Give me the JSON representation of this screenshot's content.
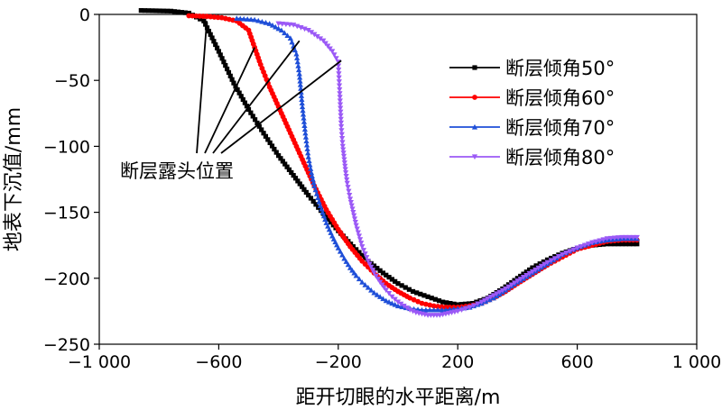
{
  "chart_data": {
    "type": "line",
    "title": "",
    "xlabel": "距开切眼的水平距离/m",
    "ylabel": "地表下沉值/mm",
    "xlim": [
      -1000,
      1000
    ],
    "ylim": [
      -250,
      0
    ],
    "xticks": [
      -1000,
      -600,
      -200,
      200,
      600,
      1000
    ],
    "xtick_labels": [
      "−1 000",
      "−600",
      "−200",
      "200",
      "600",
      "1 000"
    ],
    "yticks": [
      0,
      -50,
      -100,
      -150,
      -200,
      -250
    ],
    "ytick_labels": [
      "0",
      "−50",
      "−100",
      "−150",
      "−200",
      "−250"
    ],
    "grid": false,
    "legend_position": "top-right",
    "annotation": {
      "text": "断层露头位置",
      "points": [
        [
          -640,
          -5
        ],
        [
          -480,
          -25
        ],
        [
          -330,
          -20
        ],
        [
          -190,
          -35
        ]
      ]
    },
    "series": [
      {
        "name": "断层倾角50°",
        "color": "#000000",
        "marker": "square",
        "x": [
          -860,
          -760,
          -700,
          -650,
          -600,
          -550,
          -500,
          -450,
          -400,
          -350,
          -300,
          -250,
          -200,
          -150,
          -100,
          -50,
          0,
          50,
          100,
          150,
          200,
          250,
          300,
          350,
          400,
          450,
          500,
          550,
          600,
          650,
          700,
          750,
          800
        ],
        "y": [
          3,
          2.5,
          1,
          -5,
          -28,
          -52,
          -72,
          -90,
          -107,
          -122,
          -137,
          -151,
          -164,
          -176,
          -187,
          -196,
          -204,
          -210,
          -214,
          -218,
          -220,
          -219,
          -215,
          -208,
          -200,
          -192,
          -186,
          -181,
          -177,
          -175,
          -174,
          -174,
          -174
        ]
      },
      {
        "name": "断层倾角60°",
        "color": "#ff0000",
        "marker": "circle",
        "x": [
          -700,
          -640,
          -590,
          -540,
          -500,
          -480,
          -460,
          -430,
          -400,
          -360,
          -320,
          -280,
          -240,
          -200,
          -160,
          -120,
          -80,
          -40,
          0,
          40,
          80,
          120,
          160,
          200,
          240,
          280,
          320,
          360,
          400,
          450,
          500,
          550,
          600,
          650,
          700,
          750,
          800
        ],
        "y": [
          -1,
          -1.5,
          -2.5,
          -5,
          -12,
          -25,
          -38,
          -55,
          -70,
          -90,
          -110,
          -130,
          -148,
          -163,
          -176,
          -187,
          -196,
          -204,
          -210,
          -215,
          -219,
          -221,
          -222,
          -222,
          -221,
          -219,
          -215,
          -210,
          -204,
          -197,
          -190,
          -184,
          -178,
          -175,
          -172,
          -171,
          -171
        ]
      },
      {
        "name": "断层倾角70°",
        "color": "#1f4fd8",
        "marker": "triangle-up",
        "x": [
          -540,
          -480,
          -430,
          -390,
          -360,
          -340,
          -330,
          -320,
          -310,
          -300,
          -290,
          -280,
          -260,
          -240,
          -220,
          -200,
          -180,
          -160,
          -140,
          -120,
          -100,
          -80,
          -60,
          -40,
          -20,
          0,
          40,
          80,
          120,
          160,
          200,
          240,
          280,
          320,
          360,
          400,
          450,
          500,
          550,
          600,
          650,
          700,
          750,
          800
        ],
        "y": [
          -3,
          -4,
          -7,
          -12,
          -18,
          -30,
          -45,
          -70,
          -90,
          -108,
          -120,
          -130,
          -145,
          -158,
          -168,
          -177,
          -185,
          -192,
          -198,
          -203,
          -207,
          -211,
          -214,
          -217,
          -219,
          -221,
          -223,
          -224,
          -224,
          -224,
          -223,
          -222,
          -219,
          -215,
          -209,
          -203,
          -196,
          -189,
          -182,
          -177,
          -173,
          -171,
          -170,
          -170
        ]
      },
      {
        "name": "断层倾角80°",
        "color": "#9b59f6",
        "marker": "triangle-down",
        "x": [
          -400,
          -350,
          -300,
          -250,
          -220,
          -200,
          -195,
          -190,
          -185,
          -180,
          -175,
          -170,
          -160,
          -150,
          -140,
          -130,
          -120,
          -100,
          -80,
          -60,
          -40,
          -20,
          0,
          20,
          40,
          60,
          80,
          100,
          120,
          140,
          160,
          180,
          200,
          240,
          280,
          320,
          360,
          400,
          450,
          500,
          550,
          600,
          650,
          700,
          750,
          800
        ],
        "y": [
          -7,
          -8,
          -12,
          -20,
          -28,
          -36,
          -60,
          -85,
          -100,
          -110,
          -120,
          -128,
          -140,
          -150,
          -160,
          -168,
          -176,
          -187,
          -196,
          -203,
          -209,
          -214,
          -218,
          -221,
          -224,
          -226,
          -227,
          -228,
          -228,
          -228,
          -227,
          -226,
          -225,
          -222,
          -218,
          -213,
          -208,
          -202,
          -195,
          -188,
          -182,
          -177,
          -173,
          -170,
          -169,
          -169
        ]
      }
    ]
  }
}
